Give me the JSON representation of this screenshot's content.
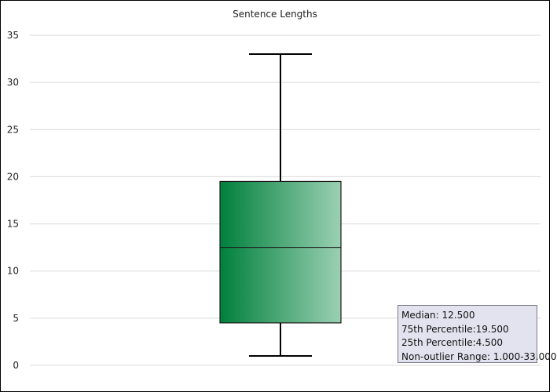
{
  "chart_data": {
    "type": "box",
    "title": "Sentence Lengths",
    "ylim": [
      0,
      35
    ],
    "yticks": [
      0,
      5,
      10,
      15,
      20,
      25,
      30,
      35
    ],
    "grid": true,
    "box": {
      "whisker_low": 1.0,
      "q1": 4.5,
      "median": 12.5,
      "q3": 19.5,
      "whisker_high": 33.0
    },
    "colors": {
      "box_dark": "#00803c",
      "box_light": "#9bd0b3",
      "grid": "#d9d9d9"
    },
    "legend": [
      {
        "label": "Median:",
        "value": "12.500"
      },
      {
        "label": "75th Percentile:",
        "value": "19.500"
      },
      {
        "label": "25th Percentile:",
        "value": "4.500"
      },
      {
        "label": "Non-outlier Range:",
        "value": "1.000-33.000"
      }
    ]
  }
}
